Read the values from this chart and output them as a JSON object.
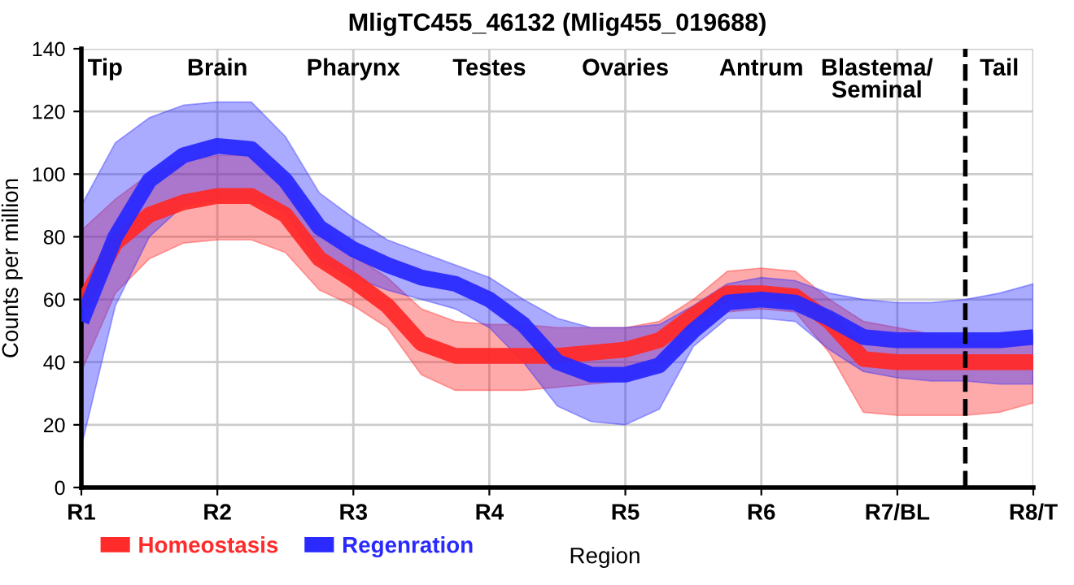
{
  "chart_data": {
    "type": "line",
    "title": "MligTC455_46132 (Mlig455_019688)",
    "xlabel": "Region",
    "ylabel": "Counts per million",
    "categories": [
      "R1",
      null,
      null,
      null,
      "R2",
      null,
      null,
      null,
      "R3",
      null,
      null,
      null,
      "R4",
      null,
      null,
      null,
      "R5",
      null,
      null,
      null,
      "R6",
      null,
      null,
      null,
      "R7/BL",
      null,
      null,
      null,
      "R8/T"
    ],
    "ylim": [
      0,
      140
    ],
    "yticks": [
      0,
      20,
      40,
      60,
      80,
      100,
      120,
      140
    ],
    "grid": true,
    "legend": "bottom left",
    "line_style": "solid",
    "marker": "none",
    "series": [
      {
        "name": "Homeostasis",
        "color": "#ff2a2a",
        "values": [
          58,
          78,
          87,
          91,
          93,
          93,
          87,
          73,
          66,
          58,
          46,
          42,
          42,
          42,
          42,
          43,
          44,
          47,
          55,
          62,
          62,
          61,
          53,
          41,
          40,
          40,
          40,
          40,
          40
        ],
        "lower": [
          37,
          62,
          73,
          78,
          79,
          79,
          75,
          63,
          58,
          51,
          36,
          31,
          31,
          31,
          32,
          33,
          34,
          38,
          48,
          56,
          57,
          56,
          43,
          24,
          23,
          23,
          23,
          24,
          27
        ],
        "upper": [
          82,
          92,
          100,
          104,
          106,
          106,
          100,
          84,
          74,
          67,
          57,
          53,
          52,
          52,
          51,
          51,
          51,
          53,
          60,
          69,
          70,
          69,
          60,
          53,
          51,
          49,
          47,
          47,
          47
        ]
      },
      {
        "name": "Regenration",
        "color": "#2a2aff",
        "values": [
          53,
          80,
          98,
          106,
          109,
          108,
          98,
          83,
          76,
          71,
          67,
          65,
          60,
          52,
          40,
          36,
          36,
          39,
          50,
          59,
          60,
          59,
          54,
          48,
          47,
          47,
          47,
          47,
          48
        ],
        "lower": [
          13,
          58,
          80,
          90,
          92,
          92,
          88,
          72,
          67,
          63,
          60,
          57,
          51,
          40,
          26,
          21,
          20,
          25,
          45,
          54,
          54,
          53,
          44,
          37,
          35,
          34,
          34,
          33,
          33
        ],
        "upper": [
          90,
          110,
          118,
          122,
          123,
          123,
          112,
          94,
          86,
          79,
          75,
          71,
          67,
          60,
          54,
          51,
          51,
          52,
          58,
          65,
          67,
          66,
          62,
          60,
          59,
          59,
          60,
          62,
          65
        ]
      }
    ],
    "annotations": [
      "Tip",
      "Brain",
      "Pharynx",
      "Testes",
      "Ovaries",
      "Antrum",
      "Blastema/\nSeminal",
      "Tail"
    ]
  }
}
